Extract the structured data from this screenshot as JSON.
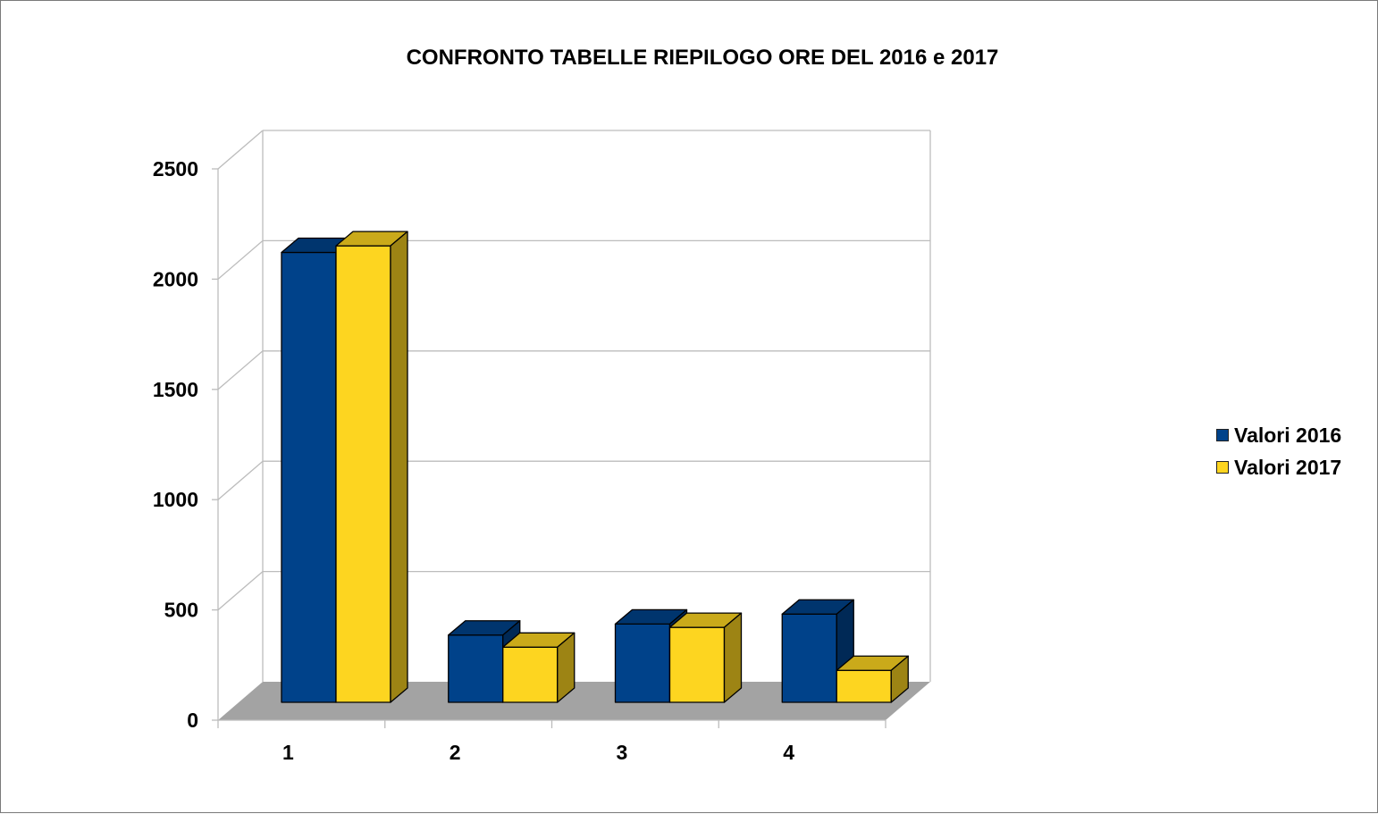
{
  "chart_data": {
    "type": "bar",
    "title": "CONFRONTO TABELLE RIEPILOGO ORE DEL 2016 e 2017",
    "xlabel": "",
    "ylabel": "",
    "categories": [
      "1",
      "2",
      "3",
      "4"
    ],
    "series": [
      {
        "name": "Valori 2016",
        "color": "#00428a",
        "values": [
          2040,
          305,
          355,
          400
        ]
      },
      {
        "name": "Valori 2017",
        "color": "#fdd520",
        "values": [
          2070,
          250,
          340,
          145
        ]
      }
    ],
    "ylim": [
      0,
      2500
    ],
    "yticks": [
      "0",
      "500",
      "1000",
      "1500",
      "2000",
      "2500"
    ],
    "grid": true,
    "legend_position": "right",
    "style": "3d-clustered-column"
  }
}
